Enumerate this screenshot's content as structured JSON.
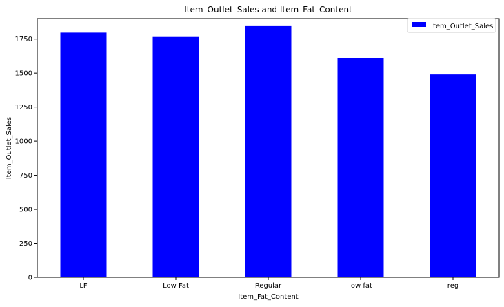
{
  "chart_data": {
    "type": "bar",
    "title": "Item_Outlet_Sales and Item_Fat_Content",
    "xlabel": "Item_Fat_Content",
    "ylabel": "Item_Outlet_Sales",
    "categories": [
      "LF",
      "Low Fat",
      "Regular",
      "low fat",
      "reg"
    ],
    "series": [
      {
        "name": "Item_Outlet_Sales",
        "values": [
          1797,
          1765,
          1845,
          1612,
          1490
        ],
        "color": "#0000ff"
      }
    ],
    "ylim": [
      0,
      1900
    ],
    "yticks": [
      0,
      250,
      500,
      750,
      1000,
      1250,
      1500,
      1750
    ],
    "grid": false,
    "legend_position": "top-right"
  }
}
